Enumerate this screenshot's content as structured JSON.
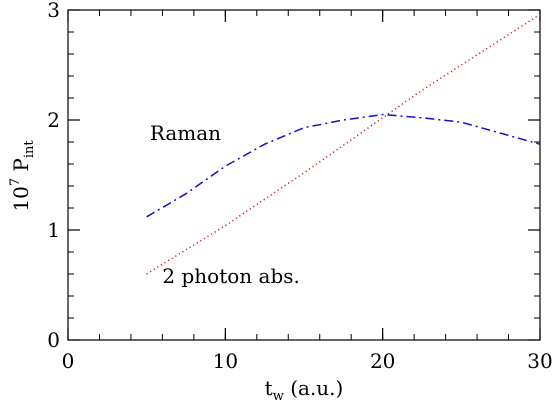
{
  "chart_data": {
    "type": "line",
    "xlabel": {
      "main": "t",
      "sub": "w",
      "rest": " (a.u.)"
    },
    "ylabel": {
      "main": "10",
      "sup": "7",
      "mid": " P",
      "sub": "int"
    },
    "xlim": [
      0,
      30
    ],
    "ylim": [
      0,
      3
    ],
    "xticks": [
      0,
      10,
      20,
      30
    ],
    "yticks": [
      0,
      1,
      2,
      3
    ],
    "xtick_labels": [
      "0",
      "10",
      "20",
      "30"
    ],
    "ytick_labels": [
      "0",
      "1",
      "2",
      "3"
    ],
    "x_minor_step": 2,
    "y_minor_step": 0.2,
    "grid": false,
    "annotations": [
      {
        "text": "Raman",
        "x": 5.2,
        "y": 1.82
      },
      {
        "text": "2 photon abs.",
        "x": 6.0,
        "y": 0.52
      }
    ],
    "series": [
      {
        "label": "Raman",
        "color": "#1010d0",
        "style": "dashdot",
        "x": [
          5,
          7.5,
          10,
          12.5,
          15,
          17.5,
          20,
          22.5,
          25,
          27.5,
          30
        ],
        "y": [
          1.12,
          1.33,
          1.58,
          1.78,
          1.93,
          2.0,
          2.05,
          2.02,
          1.98,
          1.88,
          1.78
        ]
      },
      {
        "label": "2 photon abs.",
        "color": "#cc2020",
        "style": "dotted",
        "x": [
          5,
          7.5,
          10,
          12.5,
          15,
          17.5,
          20,
          22.5,
          25,
          27.5,
          30
        ],
        "y": [
          0.6,
          0.82,
          1.04,
          1.28,
          1.52,
          1.77,
          2.02,
          2.27,
          2.5,
          2.73,
          2.96
        ]
      }
    ]
  }
}
